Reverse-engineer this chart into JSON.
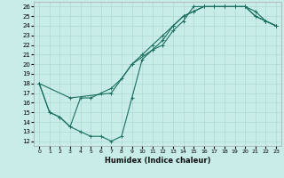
{
  "xlabel": "Humidex (Indice chaleur)",
  "bg_color": "#c8ece8",
  "line_color": "#1a7060",
  "grid_color": "#b0d8d4",
  "xlim": [
    -0.5,
    23.5
  ],
  "ylim": [
    11.5,
    26.5
  ],
  "xticks": [
    0,
    1,
    2,
    3,
    4,
    5,
    6,
    7,
    8,
    9,
    10,
    11,
    12,
    13,
    14,
    15,
    16,
    17,
    18,
    19,
    20,
    21,
    22,
    23
  ],
  "yticks": [
    12,
    13,
    14,
    15,
    16,
    17,
    18,
    19,
    20,
    21,
    22,
    23,
    24,
    25,
    26
  ],
  "line1_x": [
    0,
    1,
    2,
    3,
    4,
    5,
    6,
    7,
    8,
    9,
    10,
    11,
    12,
    13,
    14,
    15,
    16,
    17,
    18,
    19,
    20,
    21,
    22,
    23
  ],
  "line1_y": [
    18,
    15,
    14.5,
    13.5,
    13,
    12.5,
    12.5,
    12,
    12.5,
    16.5,
    20.5,
    21.5,
    22,
    23.5,
    24.5,
    26,
    26,
    26,
    26,
    26,
    26,
    25,
    24.5,
    24
  ],
  "line2_x": [
    0,
    1,
    2,
    3,
    4,
    5,
    6,
    7,
    8,
    9,
    10,
    11,
    12,
    13,
    14,
    15,
    16,
    17,
    18,
    19,
    20,
    21,
    22,
    23
  ],
  "line2_y": [
    18,
    15,
    14.5,
    13.5,
    16.5,
    16.5,
    17,
    17.5,
    18.5,
    20,
    21,
    22,
    23,
    24,
    25,
    25.5,
    26,
    26,
    26,
    26,
    26,
    25,
    24.5,
    24
  ],
  "line3_x": [
    0,
    3,
    7,
    9,
    11,
    12,
    13,
    14,
    15,
    16,
    17,
    18,
    19,
    20,
    21,
    22,
    23
  ],
  "line3_y": [
    18,
    16.5,
    17,
    20,
    21.5,
    22.5,
    24,
    25,
    25.5,
    26,
    26,
    26,
    26,
    26,
    25.5,
    24.5,
    24
  ]
}
